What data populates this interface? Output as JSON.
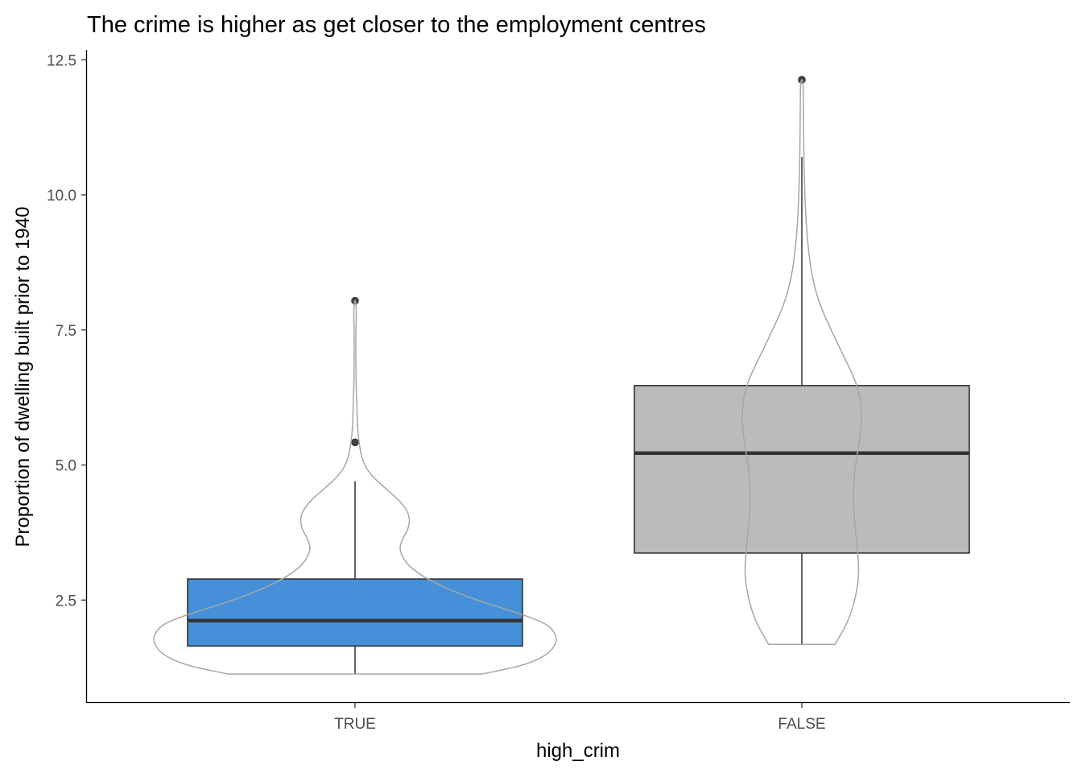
{
  "chart_data": {
    "type": "box",
    "title": "The crime is higher as get closer to the employment centres",
    "xlabel": "high_crim",
    "ylabel": "Proportion of dwelling built prior to 1940",
    "categories": [
      "TRUE",
      "FALSE"
    ],
    "ylim": [
      0.6,
      12.6
    ],
    "yticks": [
      2.5,
      5.0,
      7.5,
      10.0,
      12.5
    ],
    "ytick_labels": [
      "2.5",
      "5.0",
      "7.5",
      "10.0",
      "12.5"
    ],
    "grid": false,
    "legend": "none",
    "boxes": [
      {
        "category": "TRUE",
        "color": "#4590d9",
        "min": 1.13,
        "q1": 1.65,
        "median": 2.12,
        "q3": 2.89,
        "max": 4.7,
        "outliers": [
          5.42,
          8.04
        ]
      },
      {
        "category": "FALSE",
        "color": "#bbbbbb",
        "min": 1.68,
        "q1": 3.37,
        "median": 5.22,
        "q3": 6.47,
        "max": 10.7,
        "outliers": [
          12.13
        ]
      }
    ],
    "violins": [
      {
        "category": "TRUE",
        "density": [
          [
            1.13,
            0.63
          ],
          [
            1.3,
            0.85
          ],
          [
            1.5,
            0.96
          ],
          [
            1.7,
            1.0
          ],
          [
            1.85,
            1.0
          ],
          [
            2.05,
            0.96
          ],
          [
            2.25,
            0.82
          ],
          [
            2.5,
            0.6
          ],
          [
            2.8,
            0.4
          ],
          [
            3.1,
            0.27
          ],
          [
            3.4,
            0.22
          ],
          [
            3.6,
            0.23
          ],
          [
            3.85,
            0.27
          ],
          [
            4.1,
            0.27
          ],
          [
            4.35,
            0.22
          ],
          [
            4.6,
            0.14
          ],
          [
            4.85,
            0.07
          ],
          [
            5.1,
            0.035
          ],
          [
            5.4,
            0.02
          ],
          [
            5.7,
            0.012
          ],
          [
            6.0,
            0.01
          ],
          [
            6.4,
            0.006
          ],
          [
            6.9,
            0.004
          ],
          [
            7.4,
            0.004
          ],
          [
            7.7,
            0.006
          ],
          [
            7.9,
            0.006
          ],
          [
            8.04,
            0.003
          ]
        ]
      },
      {
        "category": "FALSE",
        "density": [
          [
            1.68,
            0.165
          ],
          [
            1.9,
            0.2
          ],
          [
            2.2,
            0.24
          ],
          [
            2.6,
            0.27
          ],
          [
            3.0,
            0.285
          ],
          [
            3.5,
            0.275
          ],
          [
            4.0,
            0.26
          ],
          [
            4.5,
            0.255
          ],
          [
            5.0,
            0.265
          ],
          [
            5.5,
            0.29
          ],
          [
            6.0,
            0.3
          ],
          [
            6.5,
            0.275
          ],
          [
            7.0,
            0.21
          ],
          [
            7.5,
            0.145
          ],
          [
            8.0,
            0.085
          ],
          [
            8.5,
            0.05
          ],
          [
            9.0,
            0.032
          ],
          [
            9.5,
            0.021
          ],
          [
            10.0,
            0.015
          ],
          [
            10.5,
            0.011
          ],
          [
            11.0,
            0.009
          ],
          [
            11.5,
            0.008
          ],
          [
            12.0,
            0.007
          ],
          [
            12.13,
            0.004
          ]
        ]
      }
    ]
  }
}
